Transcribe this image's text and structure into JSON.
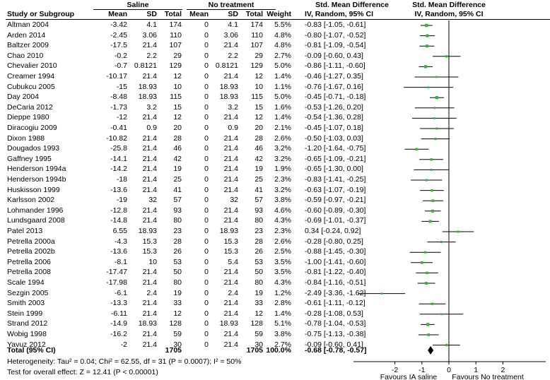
{
  "headers": {
    "group_saline": "Saline",
    "group_notreat": "No treatment",
    "group_smd": "Std. Mean Difference",
    "group_plot": "Std. Mean Difference",
    "study": "Study or Subgroup",
    "mean1": "Mean",
    "sd1": "SD",
    "total1": "Total",
    "mean2": "Mean",
    "sd2": "SD",
    "total2": "Total",
    "weight": "Weight",
    "method": "IV, Random, 95% CI",
    "method_plot": "IV, Random, 95% CI"
  },
  "rows": [
    {
      "study": "Altman 2004",
      "mean1": "-3.42",
      "sd1": "4.1",
      "n1": "174",
      "mean2": "0",
      "sd2": "4.1",
      "n2": "174",
      "weight": "5.5%",
      "ci": "-0.83 [-1.05, -0.61]"
    },
    {
      "study": "Arden 2014",
      "mean1": "-2.45",
      "sd1": "3.06",
      "n1": "110",
      "mean2": "0",
      "sd2": "3.06",
      "n2": "110",
      "weight": "4.8%",
      "ci": "-0.80 [-1.07, -0.52]"
    },
    {
      "study": "Baltzer 2009",
      "mean1": "-17.5",
      "sd1": "21.4",
      "n1": "107",
      "mean2": "0",
      "sd2": "21.4",
      "n2": "107",
      "weight": "4.8%",
      "ci": "-0.81 [-1.09, -0.54]"
    },
    {
      "study": "Chao 2010",
      "mean1": "-0.2",
      "sd1": "2.2",
      "n1": "29",
      "mean2": "0",
      "sd2": "2.2",
      "n2": "29",
      "weight": "2.7%",
      "ci": "-0.09 [-0.60, 0.43]"
    },
    {
      "study": "Chevalier 2010",
      "mean1": "-0.7",
      "sd1": "0.8121",
      "n1": "129",
      "mean2": "0",
      "sd2": "0.8121",
      "n2": "129",
      "weight": "5.0%",
      "ci": "-0.86 [-1.11, -0.60]"
    },
    {
      "study": "Creamer 1994",
      "mean1": "-10.17",
      "sd1": "21.4",
      "n1": "12",
      "mean2": "0",
      "sd2": "21.4",
      "n2": "12",
      "weight": "1.4%",
      "ci": "-0.46 [-1.27, 0.35]"
    },
    {
      "study": "Cubukcu 2005",
      "mean1": "-15",
      "sd1": "18.93",
      "n1": "10",
      "mean2": "0",
      "sd2": "18.93",
      "n2": "10",
      "weight": "1.1%",
      "ci": "-0.76 [-1.67, 0.16]"
    },
    {
      "study": "Day 2004",
      "mean1": "-8.48",
      "sd1": "18.93",
      "n1": "115",
      "mean2": "0",
      "sd2": "18.93",
      "n2": "115",
      "weight": "5.0%",
      "ci": "-0.45 [-0.71, -0.18]"
    },
    {
      "study": "DeCaria 2012",
      "mean1": "-1.73",
      "sd1": "3.2",
      "n1": "15",
      "mean2": "0",
      "sd2": "3.2",
      "n2": "15",
      "weight": "1.6%",
      "ci": "-0.53 [-1.26, 0.20]"
    },
    {
      "study": "Dieppe 1980",
      "mean1": "-12",
      "sd1": "21.4",
      "n1": "12",
      "mean2": "0",
      "sd2": "21.4",
      "n2": "12",
      "weight": "1.4%",
      "ci": "-0.54 [-1.36, 0.28]"
    },
    {
      "study": "Diracogiu 2009",
      "mean1": "-0.41",
      "sd1": "0.9",
      "n1": "20",
      "mean2": "0",
      "sd2": "0.9",
      "n2": "20",
      "weight": "2.1%",
      "ci": "-0.45 [-1.07, 0.18]"
    },
    {
      "study": "Dixon 1988",
      "mean1": "-10.82",
      "sd1": "21.4",
      "n1": "28",
      "mean2": "0",
      "sd2": "21.4",
      "n2": "28",
      "weight": "2.6%",
      "ci": "-0.50 [-1.03, 0.03]"
    },
    {
      "study": "Dougados 1993",
      "mean1": "-25.8",
      "sd1": "21.4",
      "n1": "46",
      "mean2": "0",
      "sd2": "21.4",
      "n2": "46",
      "weight": "3.2%",
      "ci": "-1.20 [-1.64, -0.75]"
    },
    {
      "study": "Gaffney 1995",
      "mean1": "-14.1",
      "sd1": "21.4",
      "n1": "42",
      "mean2": "0",
      "sd2": "21.4",
      "n2": "42",
      "weight": "3.2%",
      "ci": "-0.65 [-1.09, -0.21]"
    },
    {
      "study": "Henderson 1994a",
      "mean1": "-14.2",
      "sd1": "21.4",
      "n1": "19",
      "mean2": "0",
      "sd2": "21.4",
      "n2": "19",
      "weight": "1.9%",
      "ci": "-0.65 [-1.30, 0.00]"
    },
    {
      "study": "Henderson 1994b",
      "mean1": "-18",
      "sd1": "21.4",
      "n1": "25",
      "mean2": "0",
      "sd2": "21.4",
      "n2": "25",
      "weight": "2.3%",
      "ci": "-0.83 [-1.41, -0.25]"
    },
    {
      "study": "Huskisson 1999",
      "mean1": "-13.6",
      "sd1": "21.4",
      "n1": "41",
      "mean2": "0",
      "sd2": "21.4",
      "n2": "41",
      "weight": "3.2%",
      "ci": "-0.63 [-1.07, -0.19]"
    },
    {
      "study": "Karlsson 2002",
      "mean1": "-19",
      "sd1": "32",
      "n1": "57",
      "mean2": "0",
      "sd2": "32",
      "n2": "57",
      "weight": "3.8%",
      "ci": "-0.59 [-0.97, -0.21]"
    },
    {
      "study": "Lohmander 1996",
      "mean1": "-12.8",
      "sd1": "21.4",
      "n1": "93",
      "mean2": "0",
      "sd2": "21.4",
      "n2": "93",
      "weight": "4.6%",
      "ci": "-0.60 [-0.89, -0.30]"
    },
    {
      "study": "Lundsgaard 2008",
      "mean1": "-14.8",
      "sd1": "21.4",
      "n1": "80",
      "mean2": "0",
      "sd2": "21.4",
      "n2": "80",
      "weight": "4.3%",
      "ci": "-0.69 [-1.01, -0.37]"
    },
    {
      "study": "Patel 2013",
      "mean1": "6.55",
      "sd1": "18.93",
      "n1": "23",
      "mean2": "0",
      "sd2": "18.93",
      "n2": "23",
      "weight": "2.3%",
      "ci": "0.34 [-0.24, 0.92]"
    },
    {
      "study": "Petrella 2000a",
      "mean1": "-4.3",
      "sd1": "15.3",
      "n1": "28",
      "mean2": "0",
      "sd2": "15.3",
      "n2": "28",
      "weight": "2.6%",
      "ci": "-0.28 [-0.80, 0.25]"
    },
    {
      "study": "Petrella 2002b",
      "mean1": "-13.6",
      "sd1": "15.3",
      "n1": "26",
      "mean2": "0",
      "sd2": "15.3",
      "n2": "26",
      "weight": "2.5%",
      "ci": "-0.88 [-1.45, -0.30]"
    },
    {
      "study": "Petrella 2006",
      "mean1": "-8.1",
      "sd1": "10",
      "n1": "53",
      "mean2": "0",
      "sd2": "5.4",
      "n2": "53",
      "weight": "3.5%",
      "ci": "-1.00 [-1.41, -0.60]"
    },
    {
      "study": "Petrella 2008",
      "mean1": "-17.47",
      "sd1": "21.4",
      "n1": "50",
      "mean2": "0",
      "sd2": "21.4",
      "n2": "50",
      "weight": "3.5%",
      "ci": "-0.81 [-1.22, -0.40]"
    },
    {
      "study": "Scale 1994",
      "mean1": "-17.98",
      "sd1": "21.4",
      "n1": "80",
      "mean2": "0",
      "sd2": "21.4",
      "n2": "80",
      "weight": "4.3%",
      "ci": "-0.84 [-1.16, -0.51]"
    },
    {
      "study": "Sezgin 2005",
      "mean1": "-6.1",
      "sd1": "2.4",
      "n1": "19",
      "mean2": "0",
      "sd2": "2.4",
      "n2": "19",
      "weight": "1.2%",
      "ci": "-2.49 [-3.36, -1.62]"
    },
    {
      "study": "Smith 2003",
      "mean1": "-13.3",
      "sd1": "21.4",
      "n1": "33",
      "mean2": "0",
      "sd2": "21.4",
      "n2": "33",
      "weight": "2.8%",
      "ci": "-0.61 [-1.11, -0.12]"
    },
    {
      "study": "Stein 1999",
      "mean1": "-6.11",
      "sd1": "21.4",
      "n1": "12",
      "mean2": "0",
      "sd2": "21.4",
      "n2": "12",
      "weight": "1.4%",
      "ci": "-0.28 [-1.08, 0.53]"
    },
    {
      "study": "Strand 2012",
      "mean1": "-14.9",
      "sd1": "18.93",
      "n1": "128",
      "mean2": "0",
      "sd2": "18.93",
      "n2": "128",
      "weight": "5.1%",
      "ci": "-0.78 [-1.04, -0.53]"
    },
    {
      "study": "Wobig 1998",
      "mean1": "-16.2",
      "sd1": "21.4",
      "n1": "59",
      "mean2": "0",
      "sd2": "21.4",
      "n2": "59",
      "weight": "3.8%",
      "ci": "-0.75 [-1.13, -0.38]"
    },
    {
      "study": "Yavuz 2012",
      "mean1": "-2",
      "sd1": "21.4",
      "n1": "30",
      "mean2": "0",
      "sd2": "21.4",
      "n2": "30",
      "weight": "2.7%",
      "ci": "-0.09 [-0.60, 0.41]"
    }
  ],
  "total": {
    "label": "Total (95% CI)",
    "n1": "1705",
    "n2": "1705",
    "weight": "100.0%",
    "ci": "-0.68 [-0.78, -0.57]"
  },
  "heterogeneity": "Heterogeneity: Tau² = 0.04; Chi² = 62.55, df = 31 (P = 0.0007); I² = 50%",
  "overall_effect": "Test for overall effect: Z = 12.41 (P < 0.00001)",
  "favours_left": "Favours IA saline",
  "favours_right": "Favours No treatment",
  "colors": {
    "marker": "#2db82d",
    "text": "#000000",
    "diamond": "#000000"
  },
  "chart_data": {
    "type": "forest",
    "title": "Std. Mean Difference",
    "xlabel": "IV, Random, 95% CI",
    "xlim": [
      -4,
      4
    ],
    "xticks": [
      -2,
      -1,
      0,
      1,
      2
    ],
    "studies": [
      {
        "name": "Altman 2004",
        "smd": -0.83,
        "lo": -1.05,
        "hi": -0.61,
        "weight": 5.5
      },
      {
        "name": "Arden 2014",
        "smd": -0.8,
        "lo": -1.07,
        "hi": -0.52,
        "weight": 4.8
      },
      {
        "name": "Baltzer 2009",
        "smd": -0.81,
        "lo": -1.09,
        "hi": -0.54,
        "weight": 4.8
      },
      {
        "name": "Chao 2010",
        "smd": -0.09,
        "lo": -0.6,
        "hi": 0.43,
        "weight": 2.7
      },
      {
        "name": "Chevalier 2010",
        "smd": -0.86,
        "lo": -1.11,
        "hi": -0.6,
        "weight": 5.0
      },
      {
        "name": "Creamer 1994",
        "smd": -0.46,
        "lo": -1.27,
        "hi": 0.35,
        "weight": 1.4
      },
      {
        "name": "Cubukcu 2005",
        "smd": -0.76,
        "lo": -1.67,
        "hi": 0.16,
        "weight": 1.1
      },
      {
        "name": "Day 2004",
        "smd": -0.45,
        "lo": -0.71,
        "hi": -0.18,
        "weight": 5.0
      },
      {
        "name": "DeCaria 2012",
        "smd": -0.53,
        "lo": -1.26,
        "hi": 0.2,
        "weight": 1.6
      },
      {
        "name": "Dieppe 1980",
        "smd": -0.54,
        "lo": -1.36,
        "hi": 0.28,
        "weight": 1.4
      },
      {
        "name": "Diracogiu 2009",
        "smd": -0.45,
        "lo": -1.07,
        "hi": 0.18,
        "weight": 2.1
      },
      {
        "name": "Dixon 1988",
        "smd": -0.5,
        "lo": -1.03,
        "hi": 0.03,
        "weight": 2.6
      },
      {
        "name": "Dougados 1993",
        "smd": -1.2,
        "lo": -1.64,
        "hi": -0.75,
        "weight": 3.2
      },
      {
        "name": "Gaffney 1995",
        "smd": -0.65,
        "lo": -1.09,
        "hi": -0.21,
        "weight": 3.2
      },
      {
        "name": "Henderson 1994a",
        "smd": -0.65,
        "lo": -1.3,
        "hi": 0.0,
        "weight": 1.9
      },
      {
        "name": "Henderson 1994b",
        "smd": -0.83,
        "lo": -1.41,
        "hi": -0.25,
        "weight": 2.3
      },
      {
        "name": "Huskisson 1999",
        "smd": -0.63,
        "lo": -1.07,
        "hi": -0.19,
        "weight": 3.2
      },
      {
        "name": "Karlsson 2002",
        "smd": -0.59,
        "lo": -0.97,
        "hi": -0.21,
        "weight": 3.8
      },
      {
        "name": "Lohmander 1996",
        "smd": -0.6,
        "lo": -0.89,
        "hi": -0.3,
        "weight": 4.6
      },
      {
        "name": "Lundsgaard 2008",
        "smd": -0.69,
        "lo": -1.01,
        "hi": -0.37,
        "weight": 4.3
      },
      {
        "name": "Patel 2013",
        "smd": 0.34,
        "lo": -0.24,
        "hi": 0.92,
        "weight": 2.3
      },
      {
        "name": "Petrella 2000a",
        "smd": -0.28,
        "lo": -0.8,
        "hi": 0.25,
        "weight": 2.6
      },
      {
        "name": "Petrella 2002b",
        "smd": -0.88,
        "lo": -1.45,
        "hi": -0.3,
        "weight": 2.5
      },
      {
        "name": "Petrella 2006",
        "smd": -1.0,
        "lo": -1.41,
        "hi": -0.6,
        "weight": 3.5
      },
      {
        "name": "Petrella 2008",
        "smd": -0.81,
        "lo": -1.22,
        "hi": -0.4,
        "weight": 3.5
      },
      {
        "name": "Scale 1994",
        "smd": -0.84,
        "lo": -1.16,
        "hi": -0.51,
        "weight": 4.3
      },
      {
        "name": "Sezgin 2005",
        "smd": -2.49,
        "lo": -3.36,
        "hi": -1.62,
        "weight": 1.2
      },
      {
        "name": "Smith 2003",
        "smd": -0.61,
        "lo": -1.11,
        "hi": -0.12,
        "weight": 2.8
      },
      {
        "name": "Stein 1999",
        "smd": -0.28,
        "lo": -1.08,
        "hi": 0.53,
        "weight": 1.4
      },
      {
        "name": "Strand 2012",
        "smd": -0.78,
        "lo": -1.04,
        "hi": -0.53,
        "weight": 5.1
      },
      {
        "name": "Wobig 1998",
        "smd": -0.75,
        "lo": -1.13,
        "hi": -0.38,
        "weight": 3.8
      },
      {
        "name": "Yavuz 2012",
        "smd": -0.09,
        "lo": -0.6,
        "hi": 0.41,
        "weight": 2.7
      }
    ],
    "pooled": {
      "smd": -0.68,
      "lo": -0.78,
      "hi": -0.57
    }
  }
}
